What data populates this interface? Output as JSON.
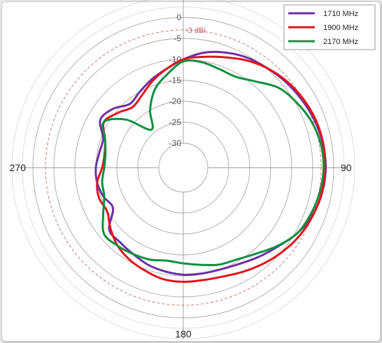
{
  "chart_data": {
    "type": "polar-line",
    "r_min": -30,
    "r_max": 0,
    "r_ticks": [
      0,
      -5,
      -10,
      -15,
      -20,
      -25,
      -30
    ],
    "reference_ring": {
      "value": -3,
      "label": "-3 dBi",
      "color": "#c87878"
    },
    "angle_labels": [
      {
        "angle": 90,
        "label": "90"
      },
      {
        "angle": 180,
        "label": "180"
      },
      {
        "angle": 270,
        "label": "270"
      }
    ],
    "legend_position": "top-right",
    "series": [
      {
        "name": "1710 MHz",
        "color": "#7030a0",
        "theta": [
          0,
          10,
          20,
          30,
          40,
          50,
          60,
          70,
          80,
          90,
          100,
          110,
          120,
          130,
          140,
          150,
          160,
          170,
          180,
          190,
          200,
          210,
          220,
          230,
          240,
          250,
          260,
          270,
          280,
          290,
          300,
          310,
          320,
          330,
          340,
          350
        ],
        "r": [
          -10,
          -8,
          -6.6,
          -5.5,
          -4.8,
          -4,
          -3.3,
          -2.6,
          -2.1,
          -1.9,
          -2.2,
          -3,
          -4.5,
          -6.5,
          -8,
          -9.3,
          -10,
          -10.2,
          -10.3,
          -10.7,
          -11.2,
          -12,
          -12.5,
          -12.8,
          -16.5,
          -15.6,
          -15,
          -15,
          -15.5,
          -15.5,
          -13,
          -14,
          -16,
          -15,
          -13.5,
          -12
        ]
      },
      {
        "name": "1900 MHz",
        "color": "#e0141e",
        "theta": [
          0,
          10,
          20,
          30,
          40,
          50,
          60,
          70,
          80,
          90,
          100,
          110,
          120,
          130,
          140,
          150,
          160,
          170,
          180,
          190,
          200,
          210,
          220,
          230,
          240,
          250,
          260,
          270,
          280,
          290,
          300,
          310,
          320,
          330,
          340,
          350
        ],
        "r": [
          -10,
          -9,
          -7.8,
          -6.2,
          -4.8,
          -3.7,
          -2.9,
          -2.3,
          -2,
          -2,
          -2.3,
          -2.9,
          -3.7,
          -4.8,
          -6,
          -7.2,
          -8.2,
          -8.6,
          -8.6,
          -8.8,
          -9.6,
          -10.4,
          -11.5,
          -13.2,
          -14.9,
          -14.5,
          -15,
          -16.5,
          -16.8,
          -16,
          -14,
          -15.5,
          -17,
          -16,
          -14,
          -12
        ]
      },
      {
        "name": "2170 MHz",
        "color": "#0f9040",
        "theta": [
          0,
          10,
          20,
          30,
          40,
          50,
          60,
          70,
          80,
          90,
          100,
          110,
          120,
          130,
          140,
          150,
          160,
          170,
          180,
          190,
          200,
          210,
          220,
          230,
          240,
          250,
          260,
          270,
          280,
          290,
          300,
          310,
          320,
          330,
          340,
          350
        ],
        "r": [
          -10.5,
          -10.3,
          -10.8,
          -10.8,
          -9,
          -6.2,
          -4.7,
          -3.4,
          -2.6,
          -2.4,
          -2.8,
          -3.5,
          -4.5,
          -6.7,
          -9,
          -10.5,
          -11.2,
          -12.3,
          -13,
          -13.3,
          -12.5,
          -12,
          -11.5,
          -11.2,
          -13.8,
          -15.8,
          -16.2,
          -17,
          -17,
          -16,
          -14,
          -18,
          -24,
          -20,
          -16,
          -13.3
        ]
      }
    ]
  }
}
